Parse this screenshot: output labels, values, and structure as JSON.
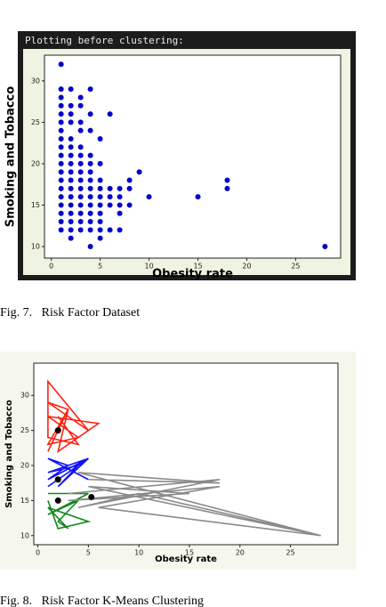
{
  "console_text": "Plotting before clustering:",
  "captions": [
    "Fig. 7.   Risk Factor Dataset",
    "Fig. 8.   Risk Factor K-Means Clustering"
  ],
  "chart_data": [
    {
      "type": "scatter",
      "color": "#0000c8",
      "x_label": "Obesity rate",
      "y_label": "Smoking and Tobacco",
      "xlim": [
        -0.7,
        29.6
      ],
      "ylim": [
        8.6,
        33.1
      ],
      "xticks": [
        0,
        5,
        10,
        15,
        20,
        25
      ],
      "yticks": [
        10,
        15,
        20,
        25,
        30
      ],
      "x": [
        1,
        1,
        1,
        1,
        1,
        1,
        1,
        1,
        1,
        1,
        1,
        1,
        1,
        1,
        1,
        1,
        1,
        1,
        1,
        2,
        2,
        2,
        2,
        2,
        2,
        2,
        2,
        2,
        2,
        2,
        2,
        2,
        2,
        2,
        2,
        2,
        3,
        3,
        3,
        3,
        3,
        3,
        3,
        3,
        3,
        3,
        3,
        3,
        3,
        3,
        3,
        4,
        4,
        4,
        4,
        4,
        4,
        4,
        4,
        4,
        4,
        4,
        4,
        4,
        4,
        5,
        5,
        5,
        5,
        5,
        5,
        5,
        5,
        5,
        5,
        6,
        6,
        6,
        6,
        6,
        7,
        7,
        7,
        7,
        7,
        8,
        8,
        8,
        9,
        10,
        15,
        18,
        18,
        28
      ],
      "y": [
        12,
        13,
        14,
        15,
        16,
        17,
        18,
        19,
        20,
        21,
        22,
        23,
        24,
        25,
        26,
        27,
        28,
        29,
        32,
        11,
        12,
        13,
        14,
        15,
        16,
        17,
        18,
        19,
        20,
        21,
        22,
        23,
        25,
        26,
        27,
        29,
        12,
        13,
        14,
        15,
        16,
        17,
        18,
        19,
        20,
        21,
        22,
        24,
        25,
        27,
        28,
        10,
        12,
        13,
        14,
        15,
        16,
        17,
        18,
        19,
        20,
        21,
        24,
        26,
        29,
        11,
        12,
        13,
        14,
        15,
        16,
        17,
        18,
        20,
        23,
        12,
        15,
        16,
        17,
        26,
        12,
        14,
        15,
        16,
        17,
        15,
        17,
        18,
        19,
        16,
        16,
        17,
        18,
        10
      ]
    },
    {
      "type": "line",
      "x_label": "Obesity rate",
      "y_label": "Smoking and Tobacco",
      "xlim": [
        -0.4,
        29.7
      ],
      "ylim": [
        8.7,
        34.6
      ],
      "xticks": [
        0,
        5,
        10,
        15,
        20,
        25
      ],
      "yticks": [
        10,
        15,
        20,
        25,
        30
      ],
      "series": [
        {
          "color": "#ff2010",
          "x": [
            1,
            3,
            1,
            4,
            1,
            6,
            2,
            3,
            1,
            5,
            1,
            1,
            4,
            2
          ],
          "y": [
            22,
            28,
            23,
            24,
            27,
            26,
            22,
            28,
            29,
            25,
            32,
            24,
            23,
            27
          ]
        },
        {
          "color": "#1010ff",
          "x": [
            1,
            5,
            1,
            4,
            2,
            5,
            1,
            3,
            1,
            5
          ],
          "y": [
            17,
            21,
            19,
            20,
            17,
            21,
            18,
            20,
            21,
            18
          ]
        },
        {
          "color": "#10881a",
          "x": [
            1,
            5,
            1,
            4,
            2,
            3,
            1,
            5,
            2,
            1
          ],
          "y": [
            16,
            16,
            13,
            15,
            12,
            11,
            14,
            12,
            11,
            15
          ]
        },
        {
          "color": "#8a8a8a",
          "x": [
            3,
            18,
            4,
            10,
            28,
            5,
            15,
            3,
            18,
            6,
            28,
            4,
            18,
            5
          ],
          "y": [
            16,
            18,
            14,
            16,
            10,
            17,
            16,
            15,
            17,
            14,
            10,
            19,
            17.5,
            18
          ]
        }
      ],
      "centroids": {
        "color": "#000000",
        "x": [
          2,
          2,
          2,
          5.3
        ],
        "y": [
          25,
          18,
          15,
          15.5
        ]
      }
    }
  ]
}
